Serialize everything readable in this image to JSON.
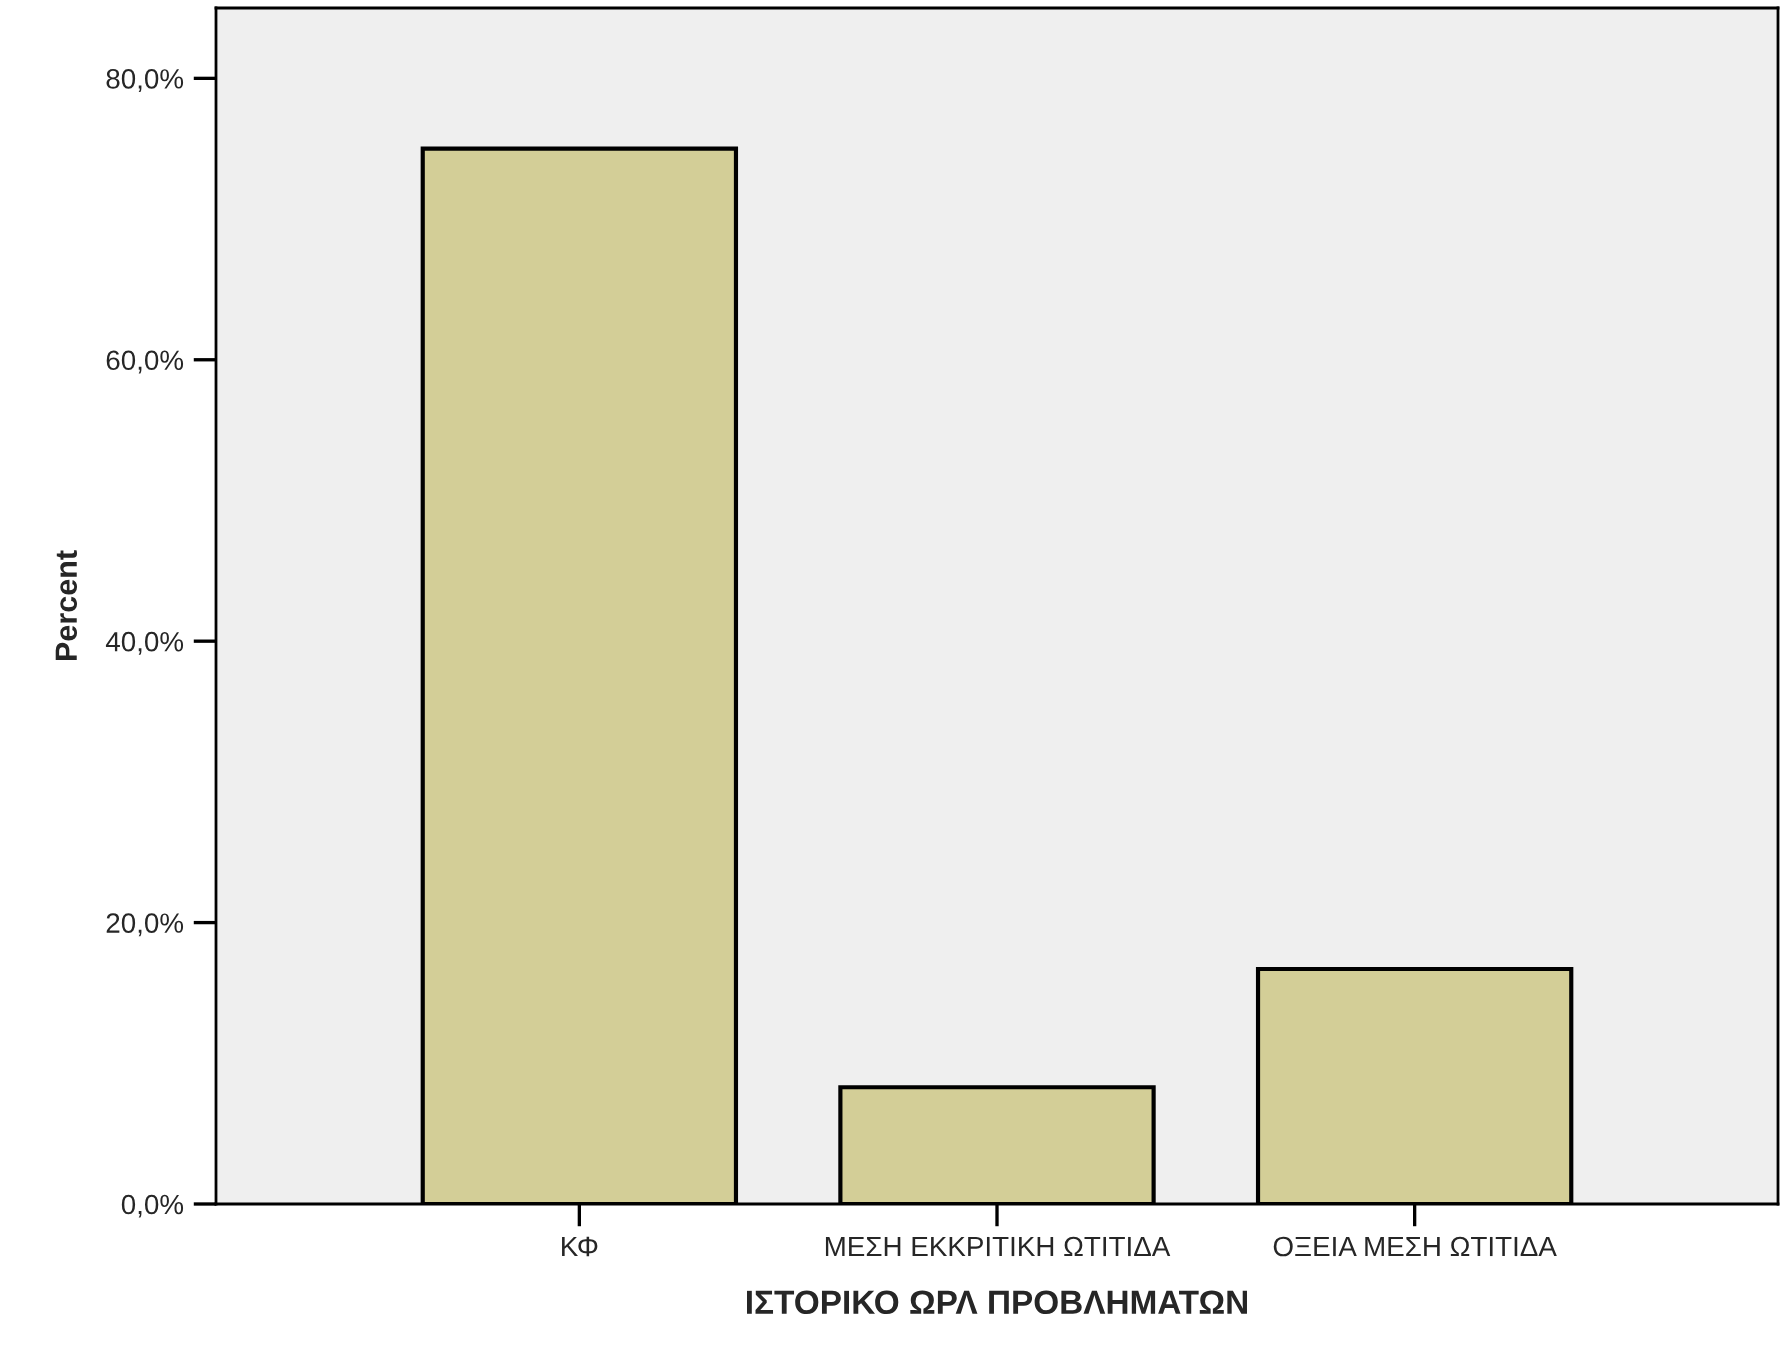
{
  "chart_data": {
    "type": "bar",
    "xlabel": "ΙΣΤΟΡΙΚΟ ΩΡΛ ΠΡΟΒΛΗΜΑΤΩΝ",
    "ylabel": "Percent",
    "categories": [
      "ΚΦ",
      "ΜΕΣΗ ΕΚΚΡΙΤΙΚΗ ΩΤΙΤΙΔΑ",
      "ΟΞΕΙΑ ΜΕΣΗ ΩΤΙΤΙΔΑ"
    ],
    "values": [
      75.0,
      8.3,
      16.7
    ],
    "color": "#d3ce97",
    "ylim": [
      0,
      85
    ],
    "yticks": [
      {
        "value": 0,
        "label": "0,0%"
      },
      {
        "value": 20,
        "label": "20,0%"
      },
      {
        "value": 40,
        "label": "40,0%"
      },
      {
        "value": 60,
        "label": "60,0%"
      },
      {
        "value": 80,
        "label": "80,0%"
      }
    ],
    "grid": false,
    "legend": false
  }
}
